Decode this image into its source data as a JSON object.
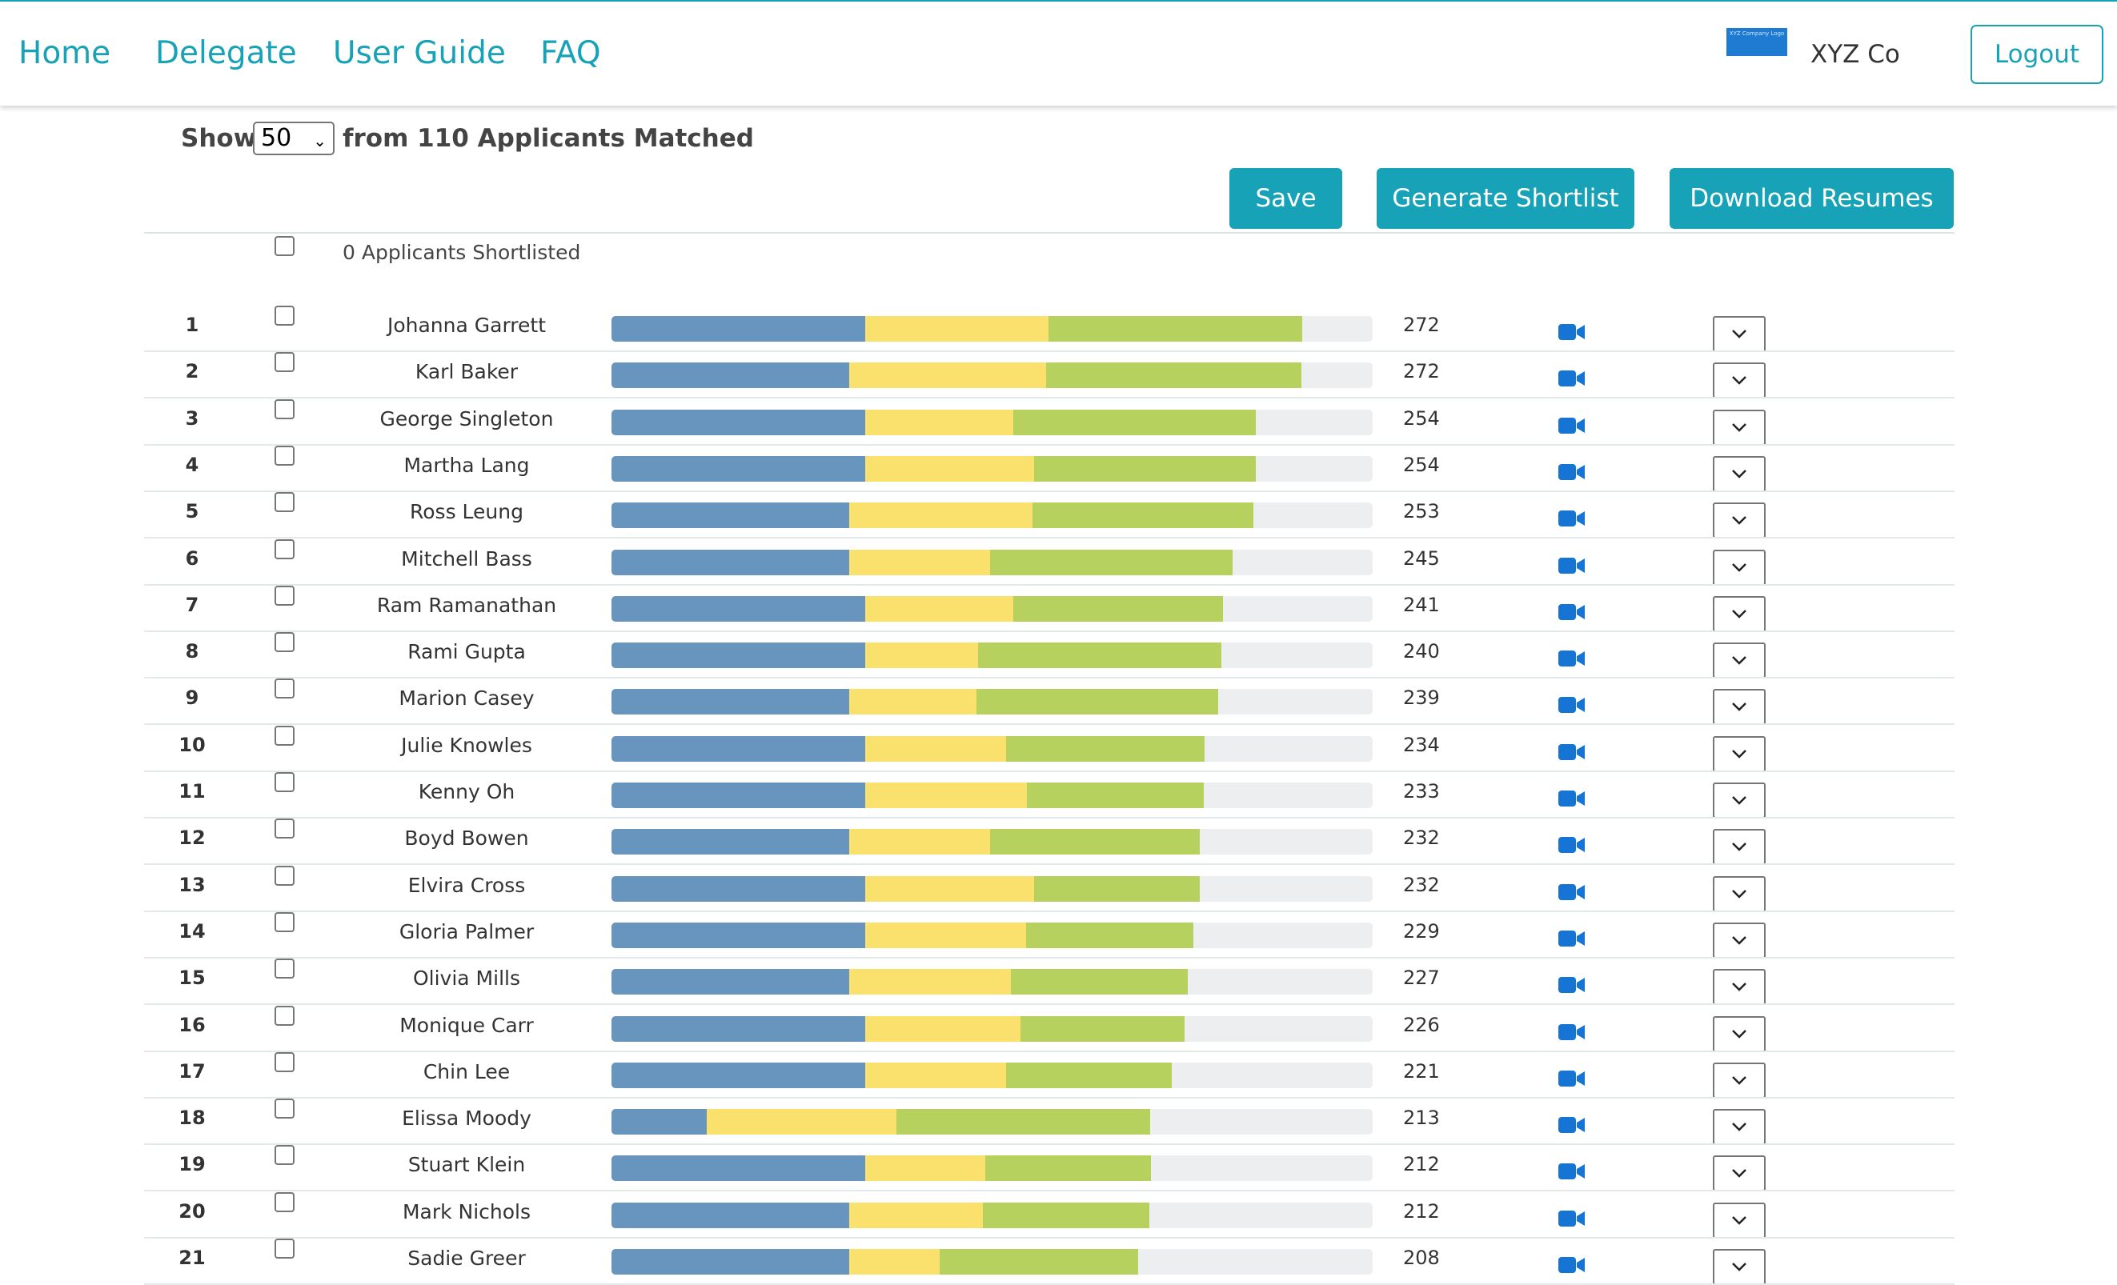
{
  "nav": {
    "links": [
      "Home",
      "Delegate",
      "User Guide",
      "FAQ"
    ],
    "company_logo_text": "XYZ Company Logo",
    "company_name": "XYZ Co",
    "logout_label": "Logout"
  },
  "toolbar": {
    "show_label": "Show",
    "page_size": "50",
    "matched_text": "from 110 Applicants Matched",
    "save_label": "Save",
    "generate_label": "Generate Shortlist",
    "download_label": "Download Resumes"
  },
  "shortlist": {
    "count_text": "0 Applicants Shortlisted"
  },
  "colors": {
    "accent": "#17a2b8",
    "bar_blue": "#6795be",
    "bar_yellow": "#fae16d",
    "bar_green": "#b6d15e",
    "bar_track": "#eceef0",
    "video_icon": "#1574d4"
  },
  "applicants": [
    {
      "rank": "1",
      "name": "Johanna Garrett",
      "score": "272"
    },
    {
      "rank": "2",
      "name": "Karl Baker",
      "score": "272"
    },
    {
      "rank": "3",
      "name": "George Singleton",
      "score": "254"
    },
    {
      "rank": "4",
      "name": "Martha Lang",
      "score": "254"
    },
    {
      "rank": "5",
      "name": "Ross Leung",
      "score": "253"
    },
    {
      "rank": "6",
      "name": "Mitchell Bass",
      "score": "245"
    },
    {
      "rank": "7",
      "name": "Ram Ramanathan",
      "score": "241"
    },
    {
      "rank": "8",
      "name": "Rami Gupta",
      "score": "240"
    },
    {
      "rank": "9",
      "name": "Marion Casey",
      "score": "239"
    },
    {
      "rank": "10",
      "name": "Julie Knowles",
      "score": "234"
    },
    {
      "rank": "11",
      "name": "Kenny Oh",
      "score": "233"
    },
    {
      "rank": "12",
      "name": "Boyd Bowen",
      "score": "232"
    },
    {
      "rank": "13",
      "name": "Elvira Cross",
      "score": "232"
    },
    {
      "rank": "14",
      "name": "Gloria Palmer",
      "score": "229"
    },
    {
      "rank": "15",
      "name": "Olivia Mills",
      "score": "227"
    },
    {
      "rank": "16",
      "name": "Monique Carr",
      "score": "226"
    },
    {
      "rank": "17",
      "name": "Chin Lee",
      "score": "221"
    },
    {
      "rank": "18",
      "name": "Elissa Moody",
      "score": "213"
    },
    {
      "rank": "19",
      "name": "Stuart Klein",
      "score": "212"
    },
    {
      "rank": "20",
      "name": "Mark Nichols",
      "score": "212"
    },
    {
      "rank": "21",
      "name": "Sadie Greer",
      "score": "208"
    }
  ],
  "score_bars": [
    [
      0.333,
      0.241,
      0.334
    ],
    [
      0.312,
      0.259,
      0.335
    ],
    [
      0.333,
      0.195,
      0.318
    ],
    [
      0.333,
      0.222,
      0.291
    ],
    [
      0.312,
      0.241,
      0.29
    ],
    [
      0.312,
      0.185,
      0.319
    ],
    [
      0.333,
      0.195,
      0.275
    ],
    [
      0.333,
      0.149,
      0.319
    ],
    [
      0.312,
      0.167,
      0.318
    ],
    [
      0.333,
      0.185,
      0.261
    ],
    [
      0.333,
      0.213,
      0.232
    ],
    [
      0.312,
      0.185,
      0.276
    ],
    [
      0.333,
      0.222,
      0.218
    ],
    [
      0.333,
      0.212,
      0.219
    ],
    [
      0.312,
      0.213,
      0.232
    ],
    [
      0.333,
      0.204,
      0.216
    ],
    [
      0.333,
      0.185,
      0.218
    ],
    [
      0.125,
      0.249,
      0.334
    ],
    [
      0.333,
      0.158,
      0.218
    ],
    [
      0.312,
      0.176,
      0.219
    ],
    [
      0.312,
      0.119,
      0.261
    ]
  ]
}
